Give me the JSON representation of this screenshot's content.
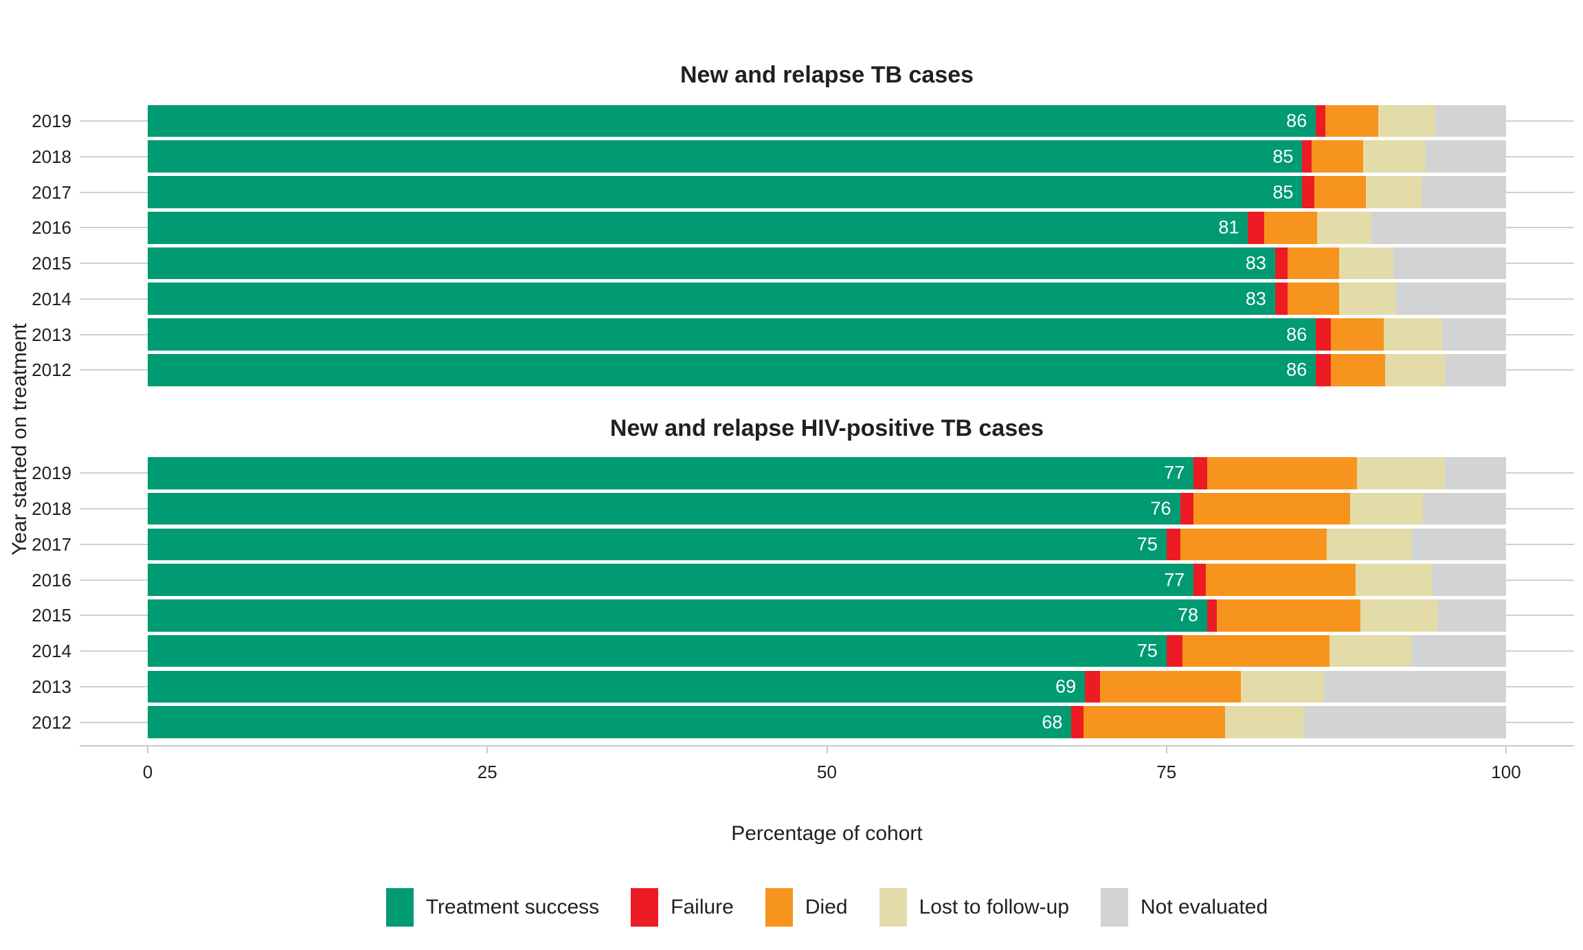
{
  "chart_data": {
    "type": "bar",
    "orientation": "horizontal",
    "stacked": true,
    "grid": "horizontal-category-lines",
    "legend_position": "bottom",
    "xlabel": "Percentage of cohort",
    "ylabel": "Year started on treatment",
    "xlim": [
      0,
      100
    ],
    "x_ticks": [
      0,
      25,
      50,
      75,
      100
    ],
    "outcome_keys": [
      "success",
      "failure",
      "died",
      "lost",
      "not_evaluated"
    ],
    "legend": [
      {
        "key": "success",
        "label": "Treatment success",
        "color": "#009b72"
      },
      {
        "key": "failure",
        "label": "Failure",
        "color": "#ec1b24"
      },
      {
        "key": "died",
        "label": "Died",
        "color": "#f7941e"
      },
      {
        "key": "lost",
        "label": "Lost to follow-up",
        "color": "#e3dca8"
      },
      {
        "key": "not_evaluated",
        "label": "Not evaluated",
        "color": "#d2d3d5"
      }
    ],
    "panels": [
      {
        "title": "New and relapse TB cases",
        "categories": [
          "2019",
          "2018",
          "2017",
          "2016",
          "2015",
          "2014",
          "2013",
          "2012"
        ],
        "bar_labels": [
          "86",
          "85",
          "85",
          "81",
          "83",
          "83",
          "86",
          "86"
        ],
        "series": [
          {
            "name": "Treatment success",
            "key": "success",
            "values": [
              86,
              85,
              85,
              81,
              83,
              83,
              86,
              86
            ]
          },
          {
            "name": "Failure",
            "key": "failure",
            "values": [
              0.7,
              0.7,
              0.9,
              1.2,
              0.9,
              0.9,
              1.1,
              1.1
            ]
          },
          {
            "name": "Died",
            "key": "died",
            "values": [
              3.9,
              3.8,
              3.8,
              3.9,
              3.8,
              3.8,
              3.9,
              4.0
            ]
          },
          {
            "name": "Lost to follow-up",
            "key": "lost",
            "values": [
              4.2,
              4.6,
              4.1,
              4.0,
              4.0,
              4.2,
              4.3,
              4.4
            ]
          },
          {
            "name": "Not evaluated",
            "key": "not_evaluated",
            "values": [
              5.2,
              5.9,
              6.2,
              9.9,
              8.3,
              8.1,
              4.7,
              4.5
            ]
          }
        ]
      },
      {
        "title": "New and relapse HIV-positive TB cases",
        "categories": [
          "2019",
          "2018",
          "2017",
          "2016",
          "2015",
          "2014",
          "2013",
          "2012"
        ],
        "bar_labels": [
          "77",
          "76",
          "75",
          "77",
          "78",
          "75",
          "69",
          "68"
        ],
        "series": [
          {
            "name": "Treatment success",
            "key": "success",
            "values": [
              77,
              76,
              75,
              77,
              78,
              75,
              69,
              68
            ]
          },
          {
            "name": "Failure",
            "key": "failure",
            "values": [
              1.0,
              1.0,
              1.0,
              0.9,
              0.7,
              1.2,
              1.1,
              0.9
            ]
          },
          {
            "name": "Died",
            "key": "died",
            "values": [
              11.0,
              11.5,
              10.8,
              11.0,
              10.6,
              10.8,
              10.4,
              10.4
            ]
          },
          {
            "name": "Lost to follow-up",
            "key": "lost",
            "values": [
              6.5,
              5.4,
              6.2,
              5.7,
              5.7,
              6.0,
              6.1,
              5.9
            ]
          },
          {
            "name": "Not evaluated",
            "key": "not_evaluated",
            "values": [
              4.5,
              6.1,
              7.0,
              5.4,
              5.0,
              7.0,
              13.4,
              14.8
            ]
          }
        ]
      }
    ]
  },
  "style_colors": {
    "gridline": "#cdd0d2",
    "axis": "#c6c9cb",
    "text": "#231f20",
    "bar_label_text": "#ffffff",
    "background": "#ffffff"
  }
}
